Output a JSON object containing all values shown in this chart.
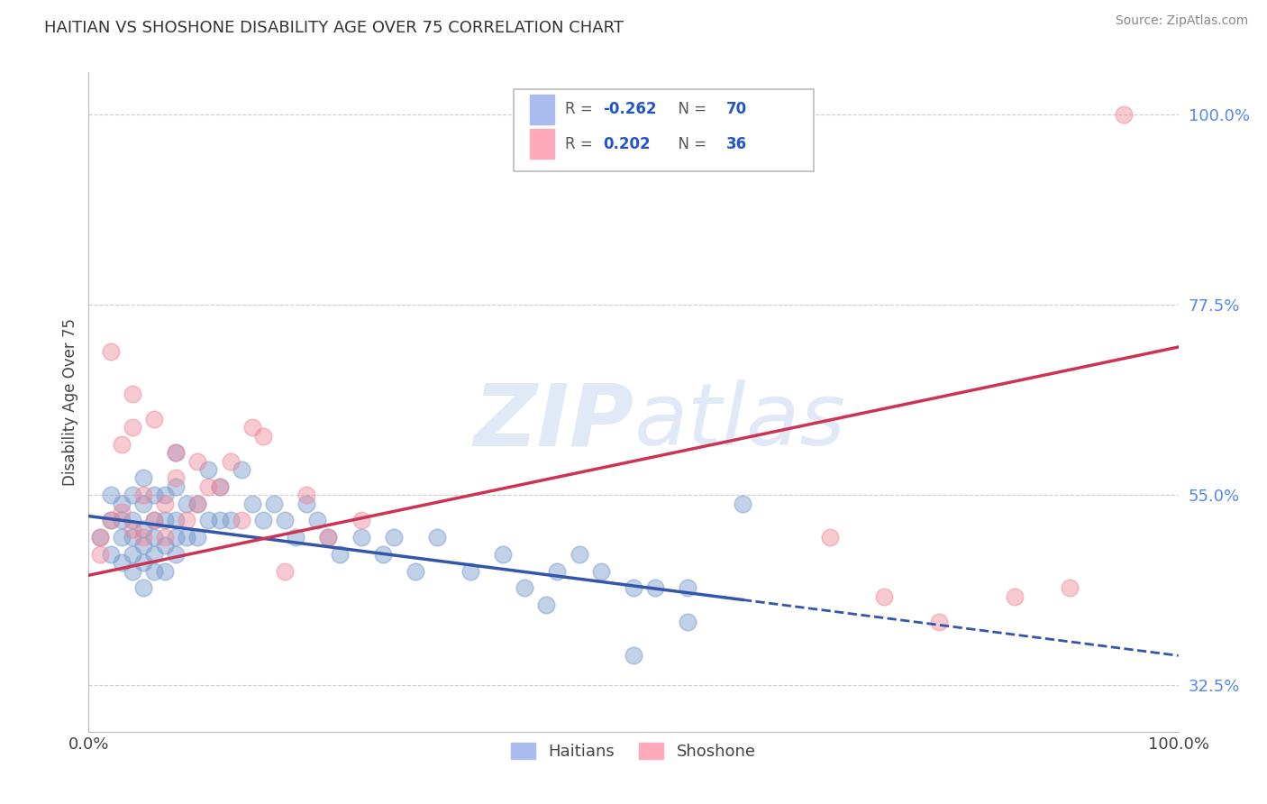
{
  "title": "HAITIAN VS SHOSHONE DISABILITY AGE OVER 75 CORRELATION CHART",
  "source_text": "Source: ZipAtlas.com",
  "ylabel": "Disability Age Over 75",
  "xlim": [
    0.0,
    1.0
  ],
  "ylim": [
    0.27,
    1.05
  ],
  "yticks": [
    0.325,
    0.55,
    0.775,
    1.0
  ],
  "ytick_labels": [
    "32.5%",
    "55.0%",
    "77.5%",
    "100.0%"
  ],
  "background_color": "#ffffff",
  "blue_color": "#7799cc",
  "pink_color": "#ee8899",
  "blue_line_color": "#3355aa",
  "pink_line_color": "#cc3355",
  "blue_R": -0.262,
  "blue_N": 70,
  "pink_R": 0.202,
  "pink_N": 36,
  "watermark": "ZIPatlas",
  "legend_blue_label": "Haitians",
  "legend_pink_label": "Shoshone",
  "blue_scatter_x": [
    0.01,
    0.02,
    0.02,
    0.02,
    0.03,
    0.03,
    0.03,
    0.03,
    0.04,
    0.04,
    0.04,
    0.04,
    0.04,
    0.05,
    0.05,
    0.05,
    0.05,
    0.05,
    0.05,
    0.06,
    0.06,
    0.06,
    0.06,
    0.06,
    0.07,
    0.07,
    0.07,
    0.07,
    0.08,
    0.08,
    0.08,
    0.08,
    0.08,
    0.09,
    0.09,
    0.1,
    0.1,
    0.11,
    0.11,
    0.12,
    0.12,
    0.13,
    0.14,
    0.15,
    0.16,
    0.17,
    0.18,
    0.19,
    0.2,
    0.21,
    0.22,
    0.23,
    0.25,
    0.27,
    0.28,
    0.3,
    0.32,
    0.35,
    0.38,
    0.4,
    0.42,
    0.43,
    0.45,
    0.47,
    0.5,
    0.52,
    0.55,
    0.6,
    0.5,
    0.55
  ],
  "blue_scatter_y": [
    0.5,
    0.48,
    0.52,
    0.55,
    0.47,
    0.5,
    0.52,
    0.54,
    0.46,
    0.48,
    0.5,
    0.52,
    0.55,
    0.44,
    0.47,
    0.49,
    0.51,
    0.54,
    0.57,
    0.46,
    0.48,
    0.5,
    0.52,
    0.55,
    0.46,
    0.49,
    0.52,
    0.55,
    0.48,
    0.5,
    0.52,
    0.56,
    0.6,
    0.5,
    0.54,
    0.5,
    0.54,
    0.52,
    0.58,
    0.52,
    0.56,
    0.52,
    0.58,
    0.54,
    0.52,
    0.54,
    0.52,
    0.5,
    0.54,
    0.52,
    0.5,
    0.48,
    0.5,
    0.48,
    0.5,
    0.46,
    0.5,
    0.46,
    0.48,
    0.44,
    0.42,
    0.46,
    0.48,
    0.46,
    0.44,
    0.44,
    0.44,
    0.54,
    0.36,
    0.4
  ],
  "pink_scatter_x": [
    0.01,
    0.01,
    0.02,
    0.02,
    0.03,
    0.03,
    0.04,
    0.04,
    0.04,
    0.05,
    0.05,
    0.06,
    0.06,
    0.07,
    0.07,
    0.08,
    0.08,
    0.09,
    0.1,
    0.1,
    0.11,
    0.12,
    0.13,
    0.14,
    0.15,
    0.16,
    0.18,
    0.2,
    0.22,
    0.25,
    0.68,
    0.73,
    0.78,
    0.85,
    0.9,
    0.95
  ],
  "pink_scatter_y": [
    0.5,
    0.48,
    0.52,
    0.72,
    0.53,
    0.61,
    0.51,
    0.63,
    0.67,
    0.5,
    0.55,
    0.52,
    0.64,
    0.54,
    0.5,
    0.57,
    0.6,
    0.52,
    0.54,
    0.59,
    0.56,
    0.56,
    0.59,
    0.52,
    0.63,
    0.62,
    0.46,
    0.55,
    0.5,
    0.52,
    0.5,
    0.43,
    0.4,
    0.43,
    0.44,
    1.0
  ],
  "blue_line_x0": 0.0,
  "blue_line_x_solid_end": 0.6,
  "blue_line_x1": 1.0,
  "blue_line_y0": 0.525,
  "blue_line_y1": 0.36,
  "pink_line_x0": 0.0,
  "pink_line_x1": 1.0,
  "pink_line_y0": 0.455,
  "pink_line_y1": 0.725
}
